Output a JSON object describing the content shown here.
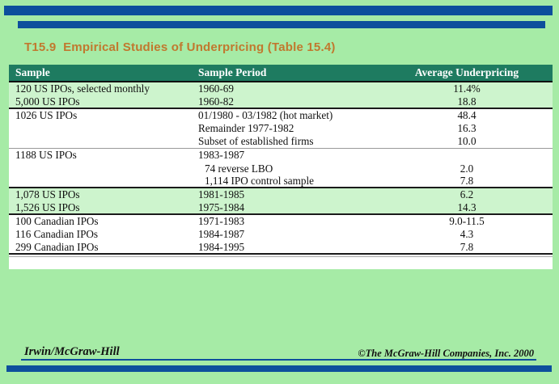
{
  "title": "T15.9  Empirical Studies of Underpricing (Table 15.4)",
  "colors": {
    "background_green": "#a6eba6",
    "accent_blue": "#0d4f9c",
    "header_green": "#1e7b60",
    "row_highlight_green": "#cdf4cd",
    "title_orange": "#c1782e",
    "table_background": "#ffffff"
  },
  "table": {
    "headers": [
      "Sample",
      "Sample Period",
      "Average Underpricing"
    ],
    "rows": [
      {
        "sample": "120 US IPOs, selected monthly",
        "period": "1960-69",
        "value": "11.4%",
        "shade": true,
        "indent": false,
        "border": ""
      },
      {
        "sample": "5,000 US IPOs",
        "period": "1960-82",
        "value": "18.8",
        "shade": true,
        "indent": false,
        "border": "dark"
      },
      {
        "sample": "1026 US IPOs",
        "period": "01/1980 - 03/1982 (hot market)",
        "value": "48.4",
        "shade": false,
        "indent": false,
        "border": ""
      },
      {
        "sample": "",
        "period": "Remainder 1977-1982",
        "value": "16.3",
        "shade": false,
        "indent": false,
        "border": ""
      },
      {
        "sample": "",
        "period": "Subset of established firms",
        "value": "10.0",
        "shade": false,
        "indent": false,
        "border": "gray"
      },
      {
        "sample": "1188 US IPOs",
        "period": "1983-1987",
        "value": "",
        "shade": false,
        "indent": false,
        "border": ""
      },
      {
        "sample": "",
        "period": "74 reverse LBO",
        "value": "2.0",
        "shade": false,
        "indent": true,
        "border": ""
      },
      {
        "sample": "",
        "period": "1,114 IPO control sample",
        "value": "7.8",
        "shade": false,
        "indent": true,
        "border": "dark"
      },
      {
        "sample": "1,078 US IPOs",
        "period": "1981-1985",
        "value": "6.2",
        "shade": true,
        "indent": false,
        "border": ""
      },
      {
        "sample": "1,526 US IPOs",
        "period": "1975-1984",
        "value": "14.3",
        "shade": true,
        "indent": false,
        "border": "dark"
      },
      {
        "sample": "100 Canadian IPOs",
        "period": "1971-1983",
        "value": "9.0-11.5",
        "shade": false,
        "indent": false,
        "border": ""
      },
      {
        "sample": "116 Canadian IPOs",
        "period": "1984-1987",
        "value": "4.3",
        "shade": false,
        "indent": false,
        "border": ""
      },
      {
        "sample": "299 Canadian IPOs",
        "period": "1984-1995",
        "value": "7.8",
        "shade": false,
        "indent": false,
        "border": "bottom"
      }
    ]
  },
  "footer": {
    "left": "Irwin/McGraw-Hill",
    "right": "©The McGraw-Hill Companies, Inc. 2000"
  }
}
